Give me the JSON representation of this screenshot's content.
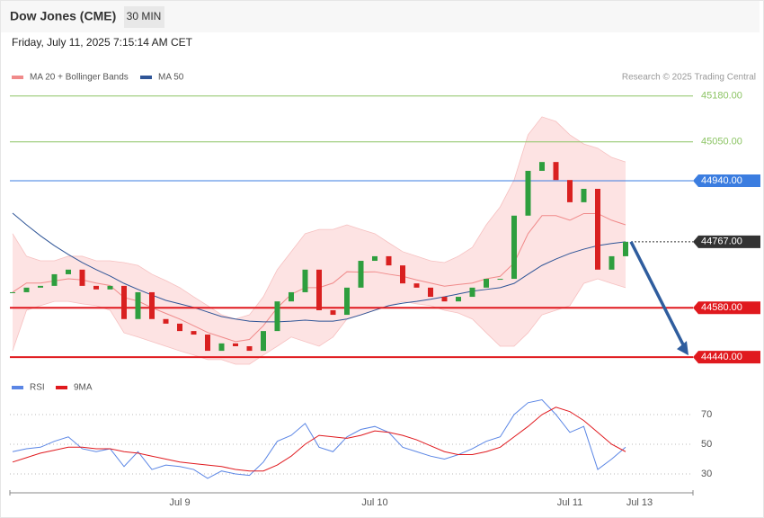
{
  "header": {
    "title": "Dow Jones (CME)",
    "timeframe": "30 MIN",
    "timestamp": "Friday, July 11, 2025 7:15:14 AM CET"
  },
  "chart_data": [
    {
      "type": "candlestick",
      "credit": "Research © 2025 Trading Central",
      "ylim": [
        44420,
        45210
      ],
      "closes": [
        44624,
        44637,
        44642,
        44675,
        44688,
        44642,
        44632,
        44642,
        44548,
        44624,
        44548,
        44535,
        44514,
        44504,
        44458,
        44479,
        44471,
        44458,
        44514,
        44598,
        44624,
        44688,
        44573,
        44560,
        44637,
        44713,
        44726,
        44700,
        44649,
        44637,
        44611,
        44598,
        44611,
        44637,
        44662,
        44662,
        44841,
        44968,
        44993,
        44942,
        44879,
        44917,
        44688,
        44726,
        44767
      ],
      "up_color": "#2e9e3e",
      "down_color": "#d92020",
      "series": [
        {
          "name": "MA 20 + Bollinger Bands",
          "color": "#f08a8a",
          "band_color": "#fde3e3",
          "values": [
            44624,
            44650,
            44650,
            44656,
            44662,
            44659,
            44650,
            44643,
            44609,
            44599,
            44580,
            44564,
            44548,
            44529,
            44510,
            44497,
            44484,
            44490,
            44529,
            44580,
            44618,
            44637,
            44637,
            44650,
            44682,
            44681,
            44682,
            44675,
            44669,
            44659,
            44650,
            44641,
            44646,
            44650,
            44662,
            44669,
            44707,
            44790,
            44841,
            44841,
            44828,
            44847,
            44847,
            44828,
            44815
          ],
          "upper": [
            44790,
            44726,
            44713,
            44713,
            44726,
            44726,
            44713,
            44713,
            44708,
            44700,
            44675,
            44657,
            44637,
            44611,
            44586,
            44560,
            44548,
            44560,
            44611,
            44688,
            44739,
            44790,
            44802,
            44802,
            44815,
            44802,
            44790,
            44764,
            44739,
            44726,
            44713,
            44708,
            44726,
            44751,
            44815,
            44866,
            44942,
            45070,
            45121,
            45108,
            45070,
            45044,
            45032,
            45006,
            44993
          ],
          "lower": [
            44458,
            44573,
            44586,
            44598,
            44598,
            44591,
            44586,
            44573,
            44509,
            44497,
            44484,
            44471,
            44458,
            44446,
            44433,
            44433,
            44420,
            44420,
            44446,
            44471,
            44497,
            44484,
            44471,
            44497,
            44548,
            44560,
            44573,
            44586,
            44598,
            44591,
            44586,
            44573,
            44565,
            44548,
            44509,
            44471,
            44471,
            44509,
            44560,
            44573,
            44586,
            44649,
            44662,
            44649,
            44637
          ]
        },
        {
          "name": "MA 50",
          "color": "#2f5597",
          "values": [
            44848,
            44815,
            44784,
            44756,
            44731,
            44708,
            44688,
            44670,
            44649,
            44632,
            44616,
            44601,
            44591,
            44581,
            44568,
            44555,
            44548,
            44542,
            44540,
            44540,
            44542,
            44545,
            44542,
            44542,
            44548,
            44560,
            44573,
            44586,
            44593,
            44598,
            44604,
            44611,
            44619,
            44627,
            44632,
            44637,
            44649,
            44675,
            44700,
            44718,
            44734,
            44746,
            44756,
            44762,
            44767
          ]
        }
      ],
      "levels": [
        {
          "value": 45180,
          "label": "45180.00",
          "color": "#8cc464",
          "boxed": false,
          "style": "solid"
        },
        {
          "value": 45050,
          "label": "45050.00",
          "color": "#8cc464",
          "boxed": false,
          "style": "solid"
        },
        {
          "value": 44940,
          "label": "44940.00",
          "color": "#3b7de0",
          "boxed": true,
          "style": "solid"
        },
        {
          "value": 44767,
          "label": "44767.00",
          "color": "#333333",
          "boxed": true,
          "style": "dotted"
        },
        {
          "value": 44580,
          "label": "44580.00",
          "color": "#e0191e",
          "boxed": true,
          "style": "solid"
        },
        {
          "value": 44440,
          "label": "44440.00",
          "color": "#e0191e",
          "boxed": true,
          "style": "solid"
        }
      ]
    },
    {
      "type": "line",
      "ylim": [
        20,
        80
      ],
      "yticks": [
        30,
        50,
        70
      ],
      "categories": [
        null,
        null,
        null,
        null,
        null,
        null,
        null,
        null,
        null,
        null,
        null,
        null,
        "Jul 9",
        null,
        null,
        null,
        null,
        null,
        null,
        null,
        null,
        null,
        null,
        null,
        null,
        null,
        "Jul 10",
        null,
        null,
        null,
        null,
        null,
        null,
        null,
        null,
        null,
        null,
        null,
        null,
        null,
        "Jul 11",
        null,
        null,
        null,
        null,
        "Jul 13"
      ],
      "series": [
        {
          "name": "RSI",
          "color": "#5b86e5",
          "values": [
            45,
            47,
            48,
            52,
            55,
            47,
            45,
            47,
            35,
            45,
            33,
            36,
            35,
            33,
            27,
            32,
            30,
            29,
            38,
            52,
            56,
            64,
            48,
            45,
            55,
            60,
            62,
            58,
            48,
            45,
            42,
            40,
            43,
            47,
            52,
            55,
            70,
            78,
            80,
            70,
            58,
            62,
            33,
            40,
            48,
            null
          ]
        },
        {
          "name": "9MA",
          "color": "#e0191e",
          "values": [
            38,
            41,
            44,
            46,
            48,
            48,
            47,
            47,
            45,
            44,
            42,
            40,
            38,
            37,
            36,
            35,
            33,
            32,
            32,
            36,
            42,
            50,
            56,
            55,
            54,
            56,
            59,
            58,
            56,
            53,
            49,
            45,
            43,
            43,
            45,
            48,
            55,
            62,
            70,
            75,
            72,
            66,
            58,
            50,
            45,
            null
          ]
        }
      ]
    }
  ]
}
